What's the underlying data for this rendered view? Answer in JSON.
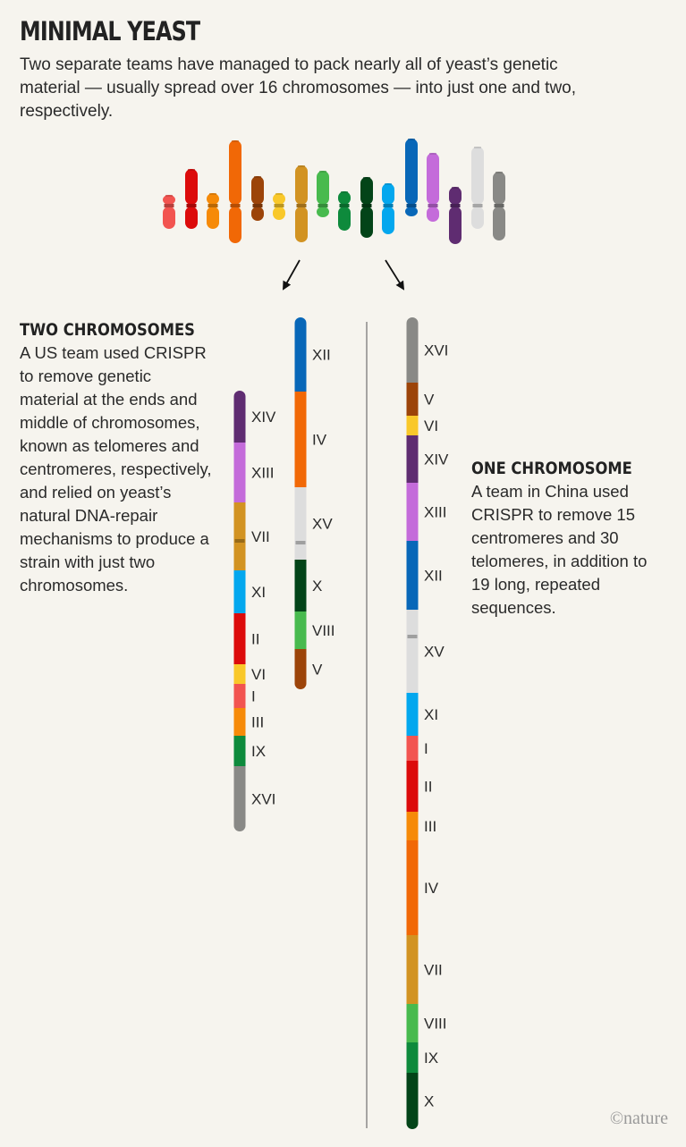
{
  "header": {
    "title": "MINIMAL YEAST",
    "subtitle": "Two separate teams have managed to pack nearly all of yeast’s genetic material — usually spread over 16 chromosomes — into just one and two, respectively."
  },
  "two_chromosomes": {
    "heading": "TWO CHROMOSOMES",
    "text": "A US team used CRISPR to remove genetic material at the ends and middle of chromosomes, known as telomeres and centromeres, respectively, and relied on yeast’s natural DNA-repair mechanisms to produce a strain with just two chromosomes.",
    "chromosome_a": [
      "XIV",
      "XIII",
      "VII",
      "XI",
      "II",
      "VI",
      "I",
      "III",
      "IX",
      "XVI"
    ],
    "chromosome_b": [
      "XII",
      "IV",
      "XV",
      "X",
      "VIII",
      "V"
    ]
  },
  "one_chromosome": {
    "heading": "ONE CHROMOSOME",
    "text": "A team in China used CRISPR to remove 15 centromeres and 30 telomeres, in addition to 19 long, repeated sequences.",
    "segments": [
      "XVI",
      "V",
      "VI",
      "XIV",
      "XIII",
      "XII",
      "XV",
      "XI",
      "I",
      "II",
      "III",
      "IV",
      "VII",
      "VIII",
      "IX",
      "X"
    ]
  },
  "chromosome_colors": {
    "I": "#f25450",
    "II": "#dc0b0b",
    "III": "#f68a08",
    "IV": "#f16806",
    "V": "#9c4409",
    "VI": "#f9c82a",
    "VII": "#d29322",
    "VIII": "#48ba4e",
    "IX": "#0e8a3c",
    "X": "#034418",
    "XI": "#03a7ee",
    "XII": "#0867b8",
    "XIII": "#c46bda",
    "XIV": "#5f2c71",
    "XV": "#dddddd",
    "XVI": "#898986"
  },
  "original_chromosomes": [
    "I",
    "II",
    "III",
    "IV",
    "V",
    "VI",
    "VII",
    "VIII",
    "IX",
    "X",
    "XI",
    "XII",
    "XIII",
    "XIV",
    "XV",
    "XVI"
  ],
  "credit": "©nature"
}
